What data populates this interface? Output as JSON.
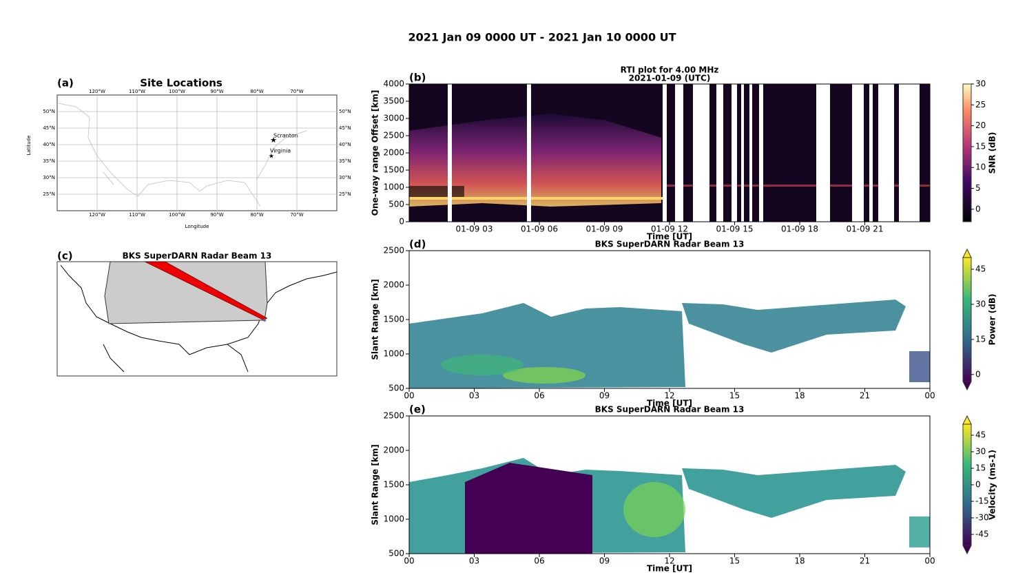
{
  "title": "2021 Jan 09 0000 UT - 2021 Jan 10 0000 UT",
  "panel_a": {
    "label": "(a)",
    "title": "Site Locations",
    "xlabel": "Longitude",
    "ylabel": "Latitude",
    "lon_ticks": [
      "120°W",
      "110°W",
      "100°W",
      "90°W",
      "80°W",
      "70°W"
    ],
    "lat_ticks": [
      "50°N",
      "45°N",
      "40°N",
      "35°N",
      "30°N",
      "25°N"
    ],
    "sites": [
      "Scranton",
      "Virginia"
    ]
  },
  "panel_b": {
    "label": "(b)",
    "title": [
      "RTI plot for  4.00 MHz",
      "2021-01-09 (UTC)"
    ],
    "xlabel": "Time [UT]",
    "ylabel": "One-way range Offset [km]",
    "xticks": [
      "01-09 03",
      "01-09 06",
      "01-09 09",
      "01-09 12",
      "01-09 15",
      "01-09 18",
      "01-09 21"
    ],
    "ylim": [
      0,
      4000
    ],
    "yticks": [
      0,
      500,
      1000,
      1500,
      2000,
      2500,
      3000,
      3500,
      4000
    ],
    "colorbar": {
      "label": "SNR (dB)",
      "lim": [
        -3,
        30
      ],
      "ticks": [
        0,
        5,
        10,
        15,
        20,
        25,
        30
      ]
    }
  },
  "panel_c": {
    "label": "(c)",
    "title": "BKS SuperDARN Radar Beam 13"
  },
  "panel_d": {
    "label": "(d)",
    "title": "BKS SuperDARN Radar Beam 13",
    "xlabel": "Time [UT]",
    "ylabel": "Slant Range [km]",
    "xticks": [
      "00",
      "03",
      "06",
      "09",
      "12",
      "15",
      "18",
      "21",
      "00"
    ],
    "ylim": [
      500,
      2500
    ],
    "yticks": [
      500,
      1000,
      1500,
      2000,
      2500
    ],
    "colorbar": {
      "label": "Power (dB)",
      "lim": [
        -3,
        50
      ],
      "ticks": [
        0,
        15,
        30,
        45
      ]
    }
  },
  "panel_e": {
    "label": "(e)",
    "title": "BKS SuperDARN Radar Beam 13",
    "xlabel": "Time [UT]",
    "ylabel": "Slant Range [km]",
    "xticks": [
      "00",
      "03",
      "06",
      "09",
      "12",
      "15",
      "18",
      "21",
      "00"
    ],
    "ylim": [
      500,
      2500
    ],
    "yticks": [
      500,
      1000,
      1500,
      2000,
      2500
    ],
    "colorbar": {
      "label": "Velocity (ms-1)",
      "lim": [
        -55,
        55
      ],
      "ticks": [
        -45,
        -30,
        -15,
        0,
        15,
        30,
        45
      ]
    }
  }
}
